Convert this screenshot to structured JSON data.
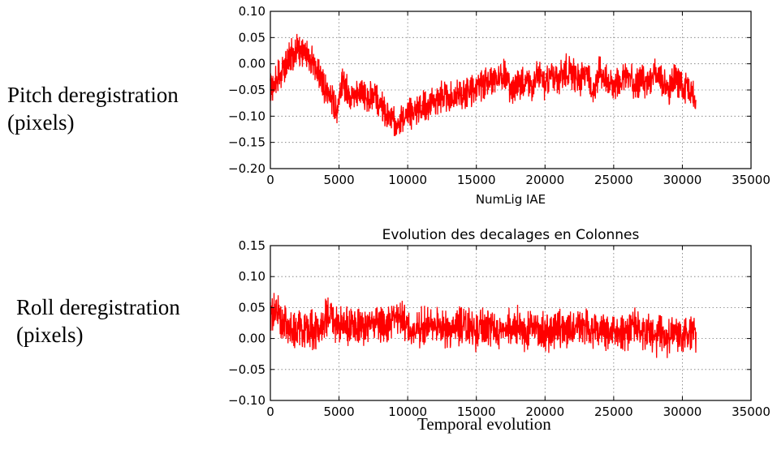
{
  "figure": {
    "top_ylabel": [
      "Pitch deregistration",
      "(pixels)"
    ],
    "bottom_ylabel": [
      "Roll deregistration",
      "(pixels)"
    ],
    "bottom_caption": "Temporal evolution"
  },
  "chart_data": [
    {
      "type": "line",
      "title": "",
      "xlabel": "NumLig IAE",
      "ylabel": "",
      "xlim": [
        0,
        35000
      ],
      "ylim": [
        -0.2,
        0.1
      ],
      "xticks": [
        0,
        5000,
        10000,
        15000,
        20000,
        25000,
        30000,
        35000
      ],
      "yticks": [
        -0.2,
        -0.15,
        -0.1,
        -0.05,
        0.0,
        0.05,
        0.1
      ],
      "ytick_labels": [
        "−0.20",
        "−0.15",
        "−0.10",
        "−0.05",
        "0.00",
        "0.05",
        "0.10"
      ],
      "grid": true,
      "series": [
        {
          "color": "#ff0000",
          "x": [
            0,
            400,
            800,
            1200,
            1600,
            2000,
            2400,
            2800,
            3200,
            3600,
            4000,
            4400,
            4800,
            5200,
            5600,
            6000,
            6500,
            7000,
            7500,
            8000,
            8500,
            9000,
            9500,
            10000,
            10500,
            11000,
            11500,
            12000,
            12500,
            13000,
            13500,
            14000,
            14500,
            15000,
            15500,
            16000,
            16500,
            17000,
            17500,
            18000,
            18500,
            19000,
            19500,
            20000,
            20500,
            21000,
            21500,
            22000,
            22500,
            23000,
            23500,
            24000,
            24500,
            25000,
            25500,
            26000,
            26500,
            27000,
            27500,
            28000,
            28500,
            29000,
            29500,
            30000,
            30500,
            31000
          ],
          "y": [
            -0.05,
            -0.03,
            -0.02,
            0.0,
            0.02,
            0.03,
            0.02,
            0.01,
            0.0,
            -0.02,
            -0.05,
            -0.06,
            -0.09,
            -0.04,
            -0.05,
            -0.06,
            -0.05,
            -0.07,
            -0.06,
            -0.08,
            -0.1,
            -0.11,
            -0.1,
            -0.1,
            -0.09,
            -0.08,
            -0.08,
            -0.07,
            -0.06,
            -0.07,
            -0.06,
            -0.06,
            -0.05,
            -0.05,
            -0.04,
            -0.04,
            -0.03,
            -0.02,
            -0.05,
            -0.04,
            -0.03,
            -0.04,
            -0.02,
            -0.04,
            -0.02,
            -0.03,
            -0.01,
            -0.02,
            -0.03,
            -0.02,
            -0.05,
            -0.01,
            -0.03,
            -0.04,
            -0.03,
            -0.02,
            -0.04,
            -0.03,
            -0.04,
            -0.02,
            -0.03,
            -0.05,
            -0.03,
            -0.04,
            -0.05,
            -0.07
          ]
        }
      ]
    },
    {
      "type": "line",
      "title": "Evolution des decalages en Colonnes",
      "xlabel": "",
      "ylabel": "",
      "xlim": [
        0,
        35000
      ],
      "ylim": [
        -0.1,
        0.15
      ],
      "xticks": [
        0,
        5000,
        10000,
        15000,
        20000,
        25000,
        30000,
        35000
      ],
      "yticks": [
        -0.1,
        -0.05,
        0.0,
        0.05,
        0.1,
        0.15
      ],
      "ytick_labels": [
        "−0.10",
        "−0.05",
        "0.00",
        "0.05",
        "0.10",
        "0.15"
      ],
      "grid": true,
      "series": [
        {
          "color": "#ff0000",
          "x": [
            0,
            400,
            800,
            1200,
            1600,
            2000,
            2400,
            2800,
            3200,
            3600,
            4000,
            4400,
            4800,
            5200,
            5600,
            6000,
            6500,
            7000,
            7500,
            8000,
            8500,
            9000,
            9500,
            10000,
            10500,
            11000,
            11500,
            12000,
            12500,
            13000,
            13500,
            14000,
            14500,
            15000,
            15500,
            16000,
            16500,
            17000,
            17500,
            18000,
            18500,
            19000,
            19500,
            20000,
            20500,
            21000,
            21500,
            22000,
            22500,
            23000,
            23500,
            24000,
            24500,
            25000,
            25500,
            26000,
            26500,
            27000,
            27500,
            28000,
            28500,
            29000,
            29500,
            30000,
            30500,
            31000
          ],
          "y": [
            0.04,
            0.05,
            0.03,
            0.02,
            0.01,
            0.02,
            0.01,
            0.02,
            0.01,
            0.02,
            0.03,
            0.04,
            0.02,
            0.03,
            0.02,
            0.02,
            0.02,
            0.02,
            0.03,
            0.02,
            0.02,
            0.03,
            0.03,
            0.02,
            0.01,
            0.02,
            0.02,
            0.02,
            0.02,
            0.01,
            0.02,
            0.02,
            0.02,
            0.01,
            0.02,
            0.02,
            0.01,
            0.02,
            0.02,
            0.02,
            0.01,
            0.02,
            0.02,
            0.01,
            0.01,
            0.02,
            0.01,
            0.01,
            0.02,
            0.02,
            0.01,
            0.02,
            0.01,
            0.01,
            0.01,
            0.01,
            0.02,
            0.01,
            0.01,
            0.0,
            0.01,
            0.0,
            0.01,
            0.0,
            0.01,
            0.01
          ]
        }
      ]
    }
  ]
}
